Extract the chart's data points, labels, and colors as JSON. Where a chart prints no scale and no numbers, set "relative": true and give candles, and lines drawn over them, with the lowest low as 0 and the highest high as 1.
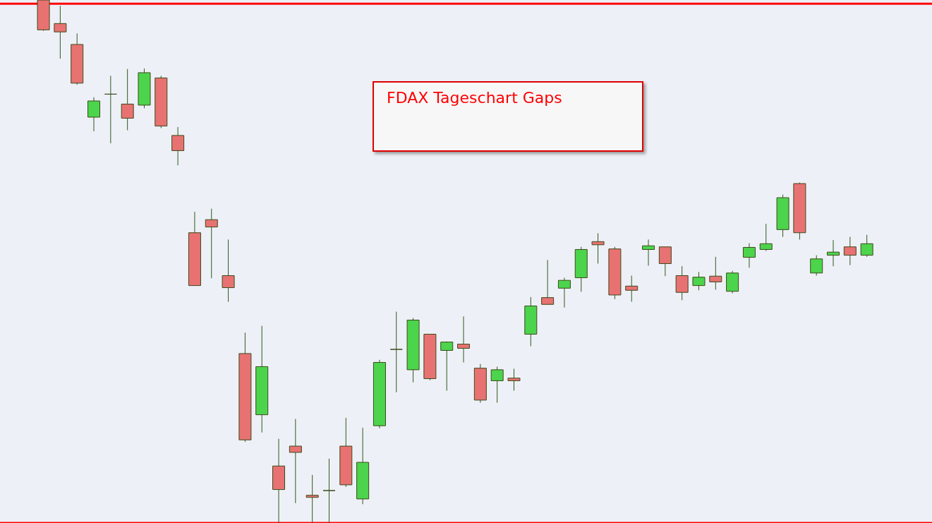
{
  "chart_data": {
    "type": "candlestick",
    "title": "FDAX  Tageschart   Gaps",
    "relative": true,
    "categories": [
      null,
      null,
      null,
      null,
      null,
      null,
      null,
      null,
      null,
      null,
      null,
      null,
      null,
      null,
      null,
      null,
      null,
      null,
      null,
      null,
      null,
      null,
      null,
      null,
      null,
      null,
      null,
      null,
      null,
      null,
      null,
      null,
      null,
      null,
      null,
      null,
      null,
      null,
      null,
      null,
      null,
      null,
      null,
      null,
      null,
      null,
      null,
      null,
      null,
      null
    ],
    "ohlc": [
      [
        1,
        1,
        0.941,
        0.943
      ],
      [
        0.955,
        0.989,
        0.888,
        0.939
      ],
      [
        0.915,
        0.936,
        0.838,
        0.841
      ],
      [
        0.776,
        0.814,
        0.749,
        0.807
      ],
      [
        0.82,
        0.855,
        0.726,
        0.82
      ],
      [
        0.801,
        0.868,
        0.751,
        0.774
      ],
      [
        0.799,
        0.869,
        0.793,
        0.861
      ],
      [
        0.851,
        0.855,
        0.755,
        0.759
      ],
      [
        0.741,
        0.757,
        0.684,
        0.712
      ],
      [
        0.555,
        0.595,
        0.454,
        0.454
      ],
      [
        0.58,
        0.601,
        0.468,
        0.566
      ],
      [
        0.473,
        0.542,
        0.423,
        0.45
      ],
      [
        0.324,
        0.364,
        0.155,
        0.159
      ],
      [
        0.207,
        0.377,
        0.173,
        0.299
      ],
      [
        0.109,
        0.161,
        0,
        0.064
      ],
      [
        0.147,
        0.199,
        0.038,
        0.135
      ],
      [
        0.053,
        0.092,
        0,
        0.049
      ],
      [
        0.062,
        0.123,
        0,
        0.062
      ],
      [
        0.147,
        0.201,
        0.069,
        0.073
      ],
      [
        0.046,
        0.182,
        0.036,
        0.116
      ],
      [
        0.186,
        0.312,
        0.181,
        0.307
      ],
      [
        0.332,
        0.404,
        0.25,
        0.332
      ],
      [
        0.293,
        0.392,
        0.269,
        0.388
      ],
      [
        0.361,
        0.361,
        0.273,
        0.276
      ],
      [
        0.33,
        0.347,
        0.253,
        0.346
      ],
      [
        0.342,
        0.395,
        0.307,
        0.334
      ],
      [
        0.296,
        0.304,
        0.23,
        0.235
      ],
      [
        0.272,
        0.299,
        0.23,
        0.293
      ],
      [
        0.277,
        0.295,
        0.253,
        0.272
      ],
      [
        0.361,
        0.432,
        0.338,
        0.415
      ],
      [
        0.431,
        0.503,
        0.418,
        0.418
      ],
      [
        0.449,
        0.469,
        0.412,
        0.464
      ],
      [
        0.469,
        0.528,
        0.442,
        0.523
      ],
      [
        0.538,
        0.554,
        0.496,
        0.532
      ],
      [
        0.524,
        0.528,
        0.428,
        0.436
      ],
      [
        0.453,
        0.473,
        0.423,
        0.445
      ],
      [
        0.523,
        0.542,
        0.492,
        0.53
      ],
      [
        0.528,
        0.528,
        0.472,
        0.496
      ],
      [
        0.473,
        0.491,
        0.426,
        0.441
      ],
      [
        0.454,
        0.48,
        0.445,
        0.47
      ],
      [
        0.472,
        0.509,
        0.446,
        0.461
      ],
      [
        0.443,
        0.482,
        0.439,
        0.478
      ],
      [
        0.508,
        0.535,
        0.488,
        0.527
      ],
      [
        0.523,
        0.572,
        0.52,
        0.534
      ],
      [
        0.561,
        0.628,
        0.547,
        0.622
      ],
      [
        0.649,
        0.651,
        0.542,
        0.555
      ],
      [
        0.478,
        0.512,
        0.473,
        0.505
      ],
      [
        0.512,
        0.541,
        0.491,
        0.518
      ],
      [
        0.528,
        0.547,
        0.493,
        0.512
      ],
      [
        0.512,
        0.551,
        0.509,
        0.534
      ]
    ],
    "colors": [
      "#e87272",
      "#e87272",
      "#e87272",
      "#4cd44c",
      "#3a4a1a",
      "#e87272",
      "#4cd44c",
      "#e87272",
      "#e87272",
      "#e87272",
      "#e87272",
      "#e87272",
      "#e87272",
      "#4cd44c",
      "#e87272",
      "#e87272",
      "#e87272",
      "#3a4a1a",
      "#e87272",
      "#4cd44c",
      "#4cd44c",
      "#3a4a1a",
      "#4cd44c",
      "#e87272",
      "#4cd44c",
      "#e87272",
      "#e87272",
      "#4cd44c",
      "#e87272",
      "#4cd44c",
      "#e87272",
      "#4cd44c",
      "#4cd44c",
      "#e87272",
      "#e87272",
      "#e87272",
      "#4cd44c",
      "#e87272",
      "#e87272",
      "#4cd44c",
      "#e87272",
      "#4cd44c",
      "#4cd44c",
      "#4cd44c",
      "#4cd44c",
      "#e87272",
      "#4cd44c",
      "#4cd44c",
      "#e87272",
      "#4cd44c"
    ],
    "ref_lines": [
      {
        "axis": "y",
        "value": 0.993,
        "color": "#ff0000"
      },
      {
        "axis": "y",
        "value": 0,
        "color": "#ff0000"
      }
    ]
  }
}
